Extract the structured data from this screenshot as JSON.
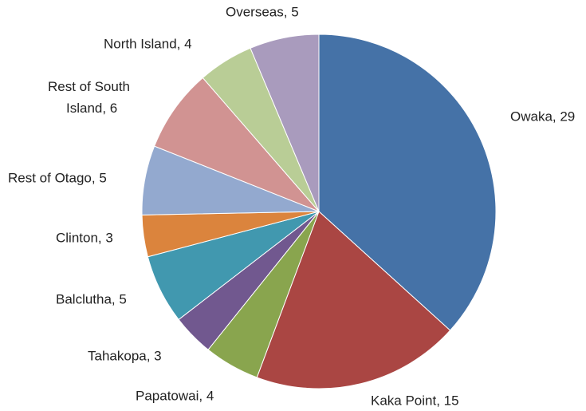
{
  "chart_data": {
    "type": "pie",
    "value_labels": [
      "Owaka, 29",
      "Kaka Point, 15",
      "Papatowai, 4",
      "Tahakopa, 3",
      "Balclutha, 5",
      "Clinton, 3",
      "Rest of Otago, 5",
      "Rest of South Island, 6",
      "North Island, 4",
      "Overseas, 5"
    ],
    "values": [
      29,
      15,
      4,
      3,
      5,
      3,
      5,
      6,
      4,
      5
    ],
    "colors": [
      "#4572a7",
      "#aa4643",
      "#89a54e",
      "#71588f",
      "#4198af",
      "#db843d",
      "#93a9cf",
      "#d19392",
      "#b9cd96",
      "#a99bbd"
    ]
  }
}
